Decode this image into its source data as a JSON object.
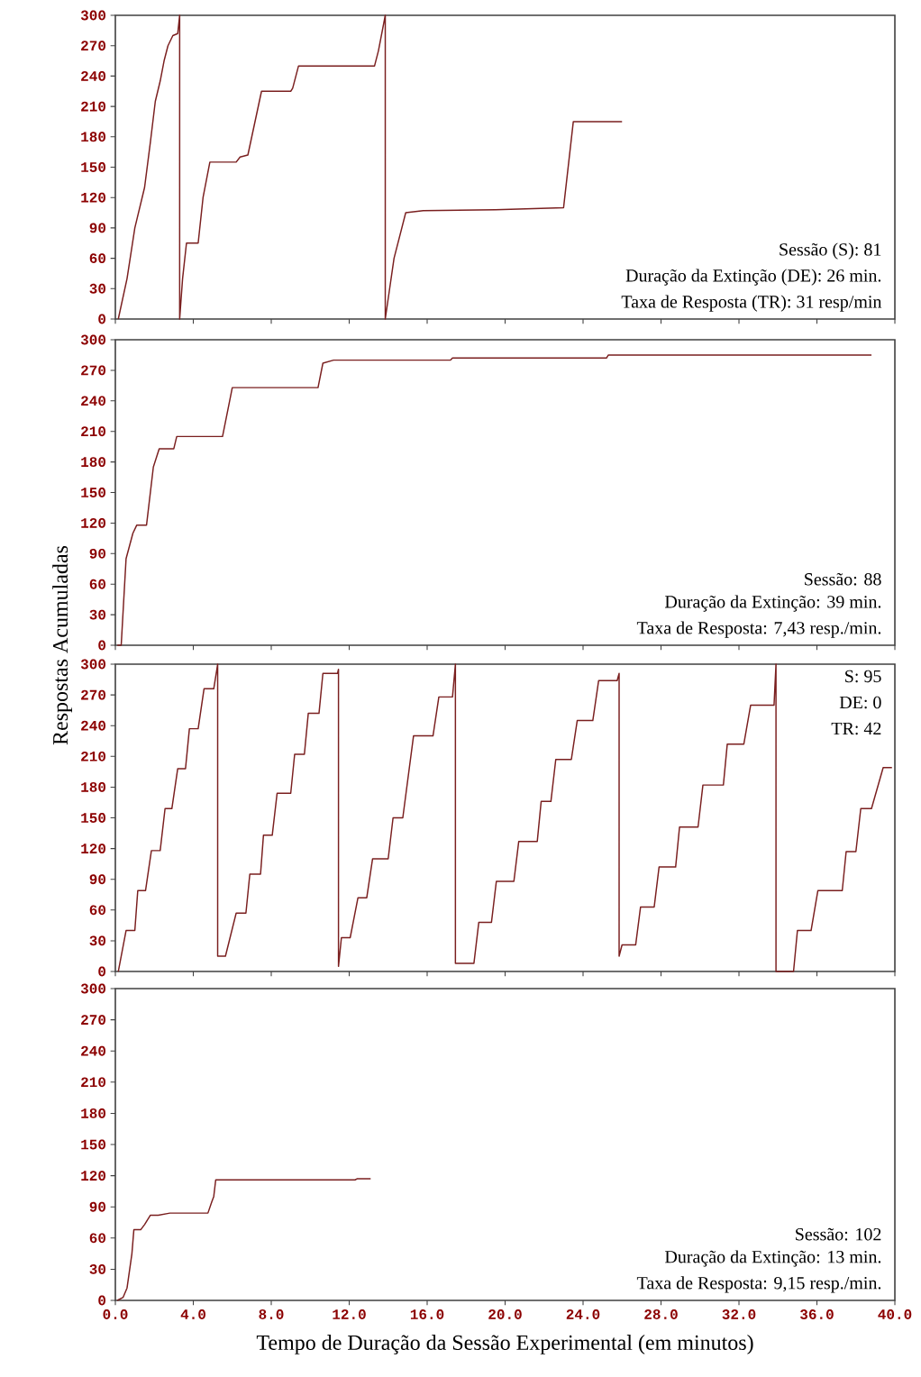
{
  "chart_data": [
    {
      "type": "line",
      "xlim": [
        0,
        40
      ],
      "ylim": [
        0,
        300
      ],
      "xticks": [
        {
          "value": 0,
          "label": null
        },
        {
          "value": 4,
          "label": null
        },
        {
          "value": 8,
          "label": null
        },
        {
          "value": 12,
          "label": null
        },
        {
          "value": 16,
          "label": null
        },
        {
          "value": 20,
          "label": null
        },
        {
          "value": 24,
          "label": null
        },
        {
          "value": 28,
          "label": null
        },
        {
          "value": 32,
          "label": null
        },
        {
          "value": 36,
          "label": null
        },
        {
          "value": 40,
          "label": null
        }
      ],
      "yticks": [
        0,
        30,
        60,
        90,
        120,
        150,
        180,
        210,
        240,
        270,
        300
      ],
      "tick_labels": "y",
      "series": [
        {
          "color": "#7a1f1f",
          "x": [
            0.15,
            0.6,
            1.0,
            1.5,
            1.8,
            2.05,
            2.3,
            2.5,
            2.7,
            2.95,
            3.2,
            3.3,
            3.3,
            3.45,
            3.65,
            4.25,
            4.5,
            4.85,
            6.2,
            6.4,
            6.8,
            7.5,
            9.0,
            9.1,
            9.4,
            13.3,
            13.5,
            13.85,
            13.85,
            14.3,
            14.9,
            15.8,
            19.5,
            23.0,
            23.5,
            26.0
          ],
          "values": [
            0,
            40,
            90,
            130,
            175,
            215,
            235,
            255,
            270,
            280,
            282,
            300,
            0,
            40,
            75,
            75,
            120,
            155,
            155,
            160,
            162,
            225,
            225,
            228,
            250,
            250,
            265,
            300,
            0,
            60,
            105,
            107,
            108,
            110,
            195,
            195
          ]
        }
      ],
      "annotations": [
        "Sessão (S): 81",
        "Duração da Extinção (DE): 26 min.",
        "Taxa de Resposta (TR): 31 resp/min"
      ]
    },
    {
      "type": "line",
      "xlim": [
        0,
        40
      ],
      "ylim": [
        0,
        300
      ],
      "xticks": [
        {
          "value": 0,
          "label": null
        },
        {
          "value": 4,
          "label": null
        },
        {
          "value": 8,
          "label": null
        },
        {
          "value": 12,
          "label": null
        },
        {
          "value": 16,
          "label": null
        },
        {
          "value": 20,
          "label": null
        },
        {
          "value": 24,
          "label": null
        },
        {
          "value": 28,
          "label": null
        },
        {
          "value": 32,
          "label": null
        },
        {
          "value": 36,
          "label": null
        },
        {
          "value": 40,
          "label": null
        }
      ],
      "yticks": [
        0,
        30,
        60,
        90,
        120,
        150,
        180,
        210,
        240,
        270,
        300
      ],
      "tick_labels": "y",
      "ylabel": "Respostas Acumuladas",
      "series": [
        {
          "color": "#7a1f1f",
          "x": [
            0.1,
            0.3,
            0.55,
            0.9,
            1.1,
            1.6,
            1.95,
            2.25,
            3.0,
            3.15,
            5.5,
            6.0,
            10.4,
            10.65,
            11.2,
            17.2,
            17.3,
            25.2,
            25.3,
            38.8
          ],
          "values": [
            0,
            0,
            85,
            110,
            118,
            118,
            175,
            193,
            193,
            205,
            205,
            253,
            253,
            277,
            280,
            280,
            282,
            282,
            285,
            285
          ]
        }
      ],
      "annotations": [
        "Sessão: 88",
        "Duração da Extinção: 39 min.",
        "Taxa de Resposta: 7,43 resp./min."
      ]
    },
    {
      "type": "line",
      "xlim": [
        0,
        40
      ],
      "ylim": [
        0,
        300
      ],
      "xticks": [
        {
          "value": 0,
          "label": null
        },
        {
          "value": 4,
          "label": null
        },
        {
          "value": 8,
          "label": null
        },
        {
          "value": 12,
          "label": null
        },
        {
          "value": 16,
          "label": null
        },
        {
          "value": 20,
          "label": null
        },
        {
          "value": 24,
          "label": null
        },
        {
          "value": 28,
          "label": null
        },
        {
          "value": 32,
          "label": null
        },
        {
          "value": 36,
          "label": null
        },
        {
          "value": 40,
          "label": null
        }
      ],
      "yticks": [
        0,
        30,
        60,
        90,
        120,
        150,
        180,
        210,
        240,
        270,
        300
      ],
      "tick_labels": "y",
      "series": [
        {
          "color": "#7a1f1f",
          "x": [
            0.15,
            0.55,
            1.0,
            1.15,
            1.55,
            1.85,
            2.3,
            2.55,
            2.9,
            3.2,
            3.6,
            3.8,
            4.25,
            4.55,
            5.05,
            5.25,
            5.25,
            5.65,
            6.2,
            6.7,
            6.9,
            7.45,
            7.6,
            8.05,
            8.3,
            9.0,
            9.2,
            9.7,
            9.9,
            10.45,
            10.65,
            11.4,
            11.45,
            11.45,
            11.6,
            12.05,
            12.45,
            12.9,
            13.2,
            14.0,
            14.25,
            14.75,
            15.3,
            16.3,
            16.6,
            17.3,
            17.45,
            17.45,
            18.4,
            18.65,
            19.3,
            19.55,
            20.45,
            20.7,
            21.65,
            21.85,
            22.35,
            22.6,
            23.4,
            23.7,
            24.5,
            24.8,
            25.75,
            25.85,
            25.85,
            26.0,
            26.7,
            26.95,
            27.65,
            27.9,
            28.75,
            28.95,
            29.9,
            30.15,
            31.2,
            31.4,
            32.25,
            32.6,
            33.8,
            33.9,
            33.9,
            34.8,
            35.0,
            35.7,
            36.05,
            37.3,
            37.5,
            38.0,
            38.25,
            38.8,
            39.4,
            39.85
          ],
          "values": [
            0,
            40,
            40,
            79,
            79,
            118,
            118,
            159,
            159,
            198,
            198,
            237,
            237,
            276,
            276,
            300,
            15,
            15,
            57,
            57,
            95,
            95,
            133,
            133,
            174,
            174,
            212,
            212,
            252,
            252,
            291,
            291,
            295,
            5,
            33,
            33,
            72,
            72,
            110,
            110,
            150,
            150,
            230,
            230,
            268,
            268,
            300,
            8,
            8,
            48,
            48,
            88,
            88,
            127,
            127,
            166,
            166,
            207,
            207,
            245,
            245,
            284,
            284,
            291,
            15,
            26,
            26,
            63,
            63,
            102,
            102,
            141,
            141,
            182,
            182,
            222,
            222,
            260,
            260,
            300,
            0,
            0,
            40,
            40,
            79,
            79,
            117,
            117,
            159,
            159,
            199,
            199
          ]
        }
      ],
      "annotations": [
        "S: 95",
        "DE: 0",
        "TR: 42"
      ]
    },
    {
      "type": "line",
      "xlim": [
        0,
        40
      ],
      "ylim": [
        0,
        300
      ],
      "xticks": [
        {
          "value": 0,
          "label": "0.0"
        },
        {
          "value": 4,
          "label": "4.0"
        },
        {
          "value": 8,
          "label": "8.0"
        },
        {
          "value": 12,
          "label": "12.0"
        },
        {
          "value": 16,
          "label": "16.0"
        },
        {
          "value": 20,
          "label": "20.0"
        },
        {
          "value": 24,
          "label": "24.0"
        },
        {
          "value": 28,
          "label": "28.0"
        },
        {
          "value": 32,
          "label": "32.0"
        },
        {
          "value": 36,
          "label": "36.0"
        },
        {
          "value": 40,
          "label": "40.0"
        }
      ],
      "yticks": [
        0,
        30,
        60,
        90,
        120,
        150,
        180,
        210,
        240,
        270,
        300
      ],
      "xlabel": "Tempo de Duração da Sessão Experimental (em minutos)",
      "series": [
        {
          "color": "#7a1f1f",
          "x": [
            0.1,
            0.4,
            0.6,
            0.85,
            0.95,
            1.3,
            1.5,
            1.8,
            2.2,
            2.8,
            4.75,
            4.95,
            5.05,
            5.15,
            12.3,
            12.4,
            13.1
          ],
          "values": [
            0,
            3,
            12,
            45,
            68,
            68,
            73,
            82,
            82,
            84,
            84,
            95,
            100,
            116,
            116,
            117,
            117
          ]
        }
      ],
      "annotations": [
        "Sessão: 102",
        "Duração da Extinção: 13 min.",
        "Taxa de Resposta: 9,15 resp./min."
      ]
    }
  ]
}
